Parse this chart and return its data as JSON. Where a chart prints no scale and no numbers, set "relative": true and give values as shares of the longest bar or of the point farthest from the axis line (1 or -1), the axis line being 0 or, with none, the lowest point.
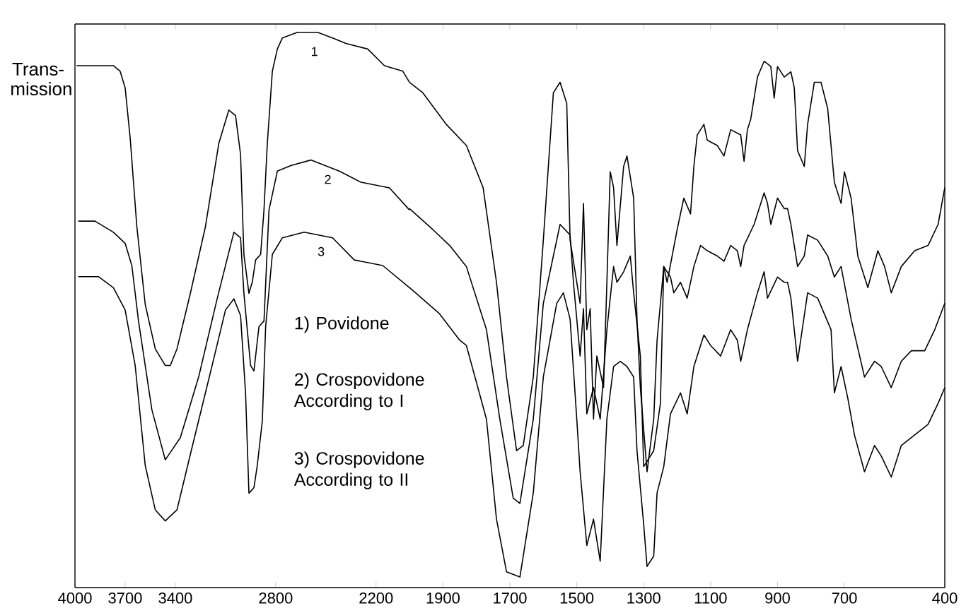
{
  "chart_data": [
    {
      "type": "line",
      "relative": true,
      "ylabel": "Trans- mission",
      "xlim": [
        4000,
        2000
      ],
      "xticks": [
        4000,
        3700,
        3400,
        2800,
        2200
      ],
      "annotations": [
        "1) Povidone",
        "2) Crospovidone According to I",
        "3) Crospovidone According to II"
      ],
      "series": [
        {
          "name": "1",
          "color": "#000000",
          "x": [
            3990,
            3940,
            3860,
            3770,
            3730,
            3700,
            3670,
            3630,
            3580,
            3520,
            3460,
            3430,
            3390,
            3310,
            3220,
            3140,
            3080,
            3040,
            3010,
            2990,
            2960,
            2940,
            2920,
            2890,
            2870,
            2850,
            2820,
            2790,
            2760,
            2670,
            2550,
            2460,
            2380,
            2250,
            2150,
            2040,
            2000
          ],
          "values": [
            0.94,
            0.94,
            0.94,
            0.94,
            0.93,
            0.9,
            0.81,
            0.65,
            0.51,
            0.43,
            0.4,
            0.4,
            0.43,
            0.53,
            0.65,
            0.8,
            0.86,
            0.85,
            0.78,
            0.6,
            0.53,
            0.55,
            0.59,
            0.6,
            0.68,
            0.8,
            0.93,
            0.97,
            0.99,
            1.0,
            1.0,
            0.99,
            0.98,
            0.97,
            0.94,
            0.93,
            0.91
          ]
        },
        {
          "name": "2",
          "color": "#000000",
          "x": [
            3980,
            3880,
            3770,
            3700,
            3660,
            3620,
            3540,
            3460,
            3370,
            3260,
            3150,
            3050,
            3010,
            2990,
            2950,
            2930,
            2900,
            2870,
            2840,
            2790,
            2710,
            2590,
            2420,
            2290,
            2120,
            2000
          ],
          "values": [
            0.66,
            0.66,
            0.64,
            0.62,
            0.58,
            0.48,
            0.32,
            0.23,
            0.27,
            0.38,
            0.52,
            0.64,
            0.63,
            0.53,
            0.4,
            0.39,
            0.47,
            0.48,
            0.68,
            0.75,
            0.76,
            0.77,
            0.75,
            0.73,
            0.72,
            0.68
          ]
        },
        {
          "name": "3",
          "color": "#000000",
          "x": [
            3980,
            3860,
            3770,
            3700,
            3640,
            3580,
            3520,
            3460,
            3390,
            3310,
            3180,
            3100,
            3050,
            3010,
            2980,
            2960,
            2930,
            2910,
            2880,
            2860,
            2820,
            2760,
            2630,
            2460,
            2330,
            2160,
            2000
          ],
          "values": [
            0.56,
            0.56,
            0.54,
            0.5,
            0.4,
            0.22,
            0.14,
            0.12,
            0.14,
            0.24,
            0.4,
            0.5,
            0.52,
            0.49,
            0.35,
            0.17,
            0.18,
            0.22,
            0.3,
            0.47,
            0.6,
            0.63,
            0.64,
            0.63,
            0.59,
            0.58,
            0.54
          ]
        }
      ]
    },
    {
      "type": "line",
      "relative": true,
      "xlim": [
        2000,
        400
      ],
      "xticks": [
        1900,
        1700,
        1500,
        1300,
        1100,
        900,
        700,
        400
      ],
      "series": [
        {
          "color": "#000000",
          "x": [
            2000,
            1960,
            1890,
            1830,
            1780,
            1740,
            1710,
            1680,
            1660,
            1630,
            1600,
            1570,
            1550,
            1530,
            1520,
            1490,
            1480,
            1470,
            1460,
            1450,
            1440,
            1420,
            1410,
            1400,
            1390,
            1380,
            1360,
            1350,
            1330,
            1320,
            1310,
            1290,
            1270,
            1260,
            1240,
            1230,
            1200,
            1180,
            1160,
            1150,
            1140,
            1120,
            1110,
            1080,
            1060,
            1040,
            1010,
            1000,
            990,
            980,
            960,
            940,
            920,
            910,
            900,
            880,
            860,
            850,
            840,
            820,
            810,
            790,
            770,
            750,
            730,
            710,
            700,
            680,
            660,
            630,
            600,
            580,
            560,
            530,
            490,
            450,
            420,
            400
          ],
          "values": [
            0.96,
            0.94,
            0.88,
            0.84,
            0.76,
            0.58,
            0.4,
            0.26,
            0.27,
            0.4,
            0.66,
            0.94,
            0.96,
            0.92,
            0.66,
            0.54,
            0.73,
            0.49,
            0.53,
            0.32,
            0.44,
            0.38,
            0.58,
            0.79,
            0.76,
            0.65,
            0.8,
            0.82,
            0.74,
            0.51,
            0.38,
            0.22,
            0.32,
            0.47,
            0.61,
            0.58,
            0.68,
            0.74,
            0.71,
            0.8,
            0.86,
            0.88,
            0.85,
            0.84,
            0.82,
            0.87,
            0.86,
            0.81,
            0.87,
            0.89,
            0.97,
            1.0,
            0.99,
            0.93,
            0.99,
            0.97,
            0.98,
            0.95,
            0.83,
            0.8,
            0.88,
            0.96,
            0.96,
            0.91,
            0.77,
            0.73,
            0.79,
            0.74,
            0.63,
            0.57,
            0.64,
            0.61,
            0.56,
            0.61,
            0.64,
            0.65,
            0.69,
            0.76
          ]
        },
        {
          "color": "#000000",
          "x": [
            2000,
            1930,
            1880,
            1830,
            1770,
            1730,
            1690,
            1670,
            1630,
            1600,
            1550,
            1520,
            1510,
            1490,
            1480,
            1470,
            1450,
            1430,
            1410,
            1390,
            1380,
            1360,
            1340,
            1330,
            1310,
            1300,
            1270,
            1250,
            1240,
            1220,
            1210,
            1190,
            1170,
            1150,
            1130,
            1110,
            1080,
            1060,
            1040,
            1020,
            1010,
            1000,
            970,
            940,
            930,
            920,
            900,
            880,
            870,
            860,
            840,
            820,
            810,
            780,
            750,
            730,
            710,
            680,
            640,
            610,
            590,
            560,
            530,
            500,
            460,
            430,
            400
          ],
          "values": [
            0.72,
            0.68,
            0.65,
            0.61,
            0.49,
            0.32,
            0.17,
            0.16,
            0.32,
            0.54,
            0.69,
            0.67,
            0.58,
            0.44,
            0.53,
            0.33,
            0.38,
            0.32,
            0.49,
            0.61,
            0.58,
            0.6,
            0.63,
            0.56,
            0.44,
            0.23,
            0.26,
            0.35,
            0.61,
            0.59,
            0.56,
            0.58,
            0.55,
            0.61,
            0.65,
            0.64,
            0.63,
            0.62,
            0.65,
            0.64,
            0.61,
            0.65,
            0.69,
            0.75,
            0.73,
            0.69,
            0.74,
            0.72,
            0.72,
            0.69,
            0.61,
            0.63,
            0.67,
            0.66,
            0.63,
            0.59,
            0.61,
            0.51,
            0.4,
            0.43,
            0.42,
            0.38,
            0.43,
            0.45,
            0.45,
            0.49,
            0.54
          ]
        },
        {
          "color": "#000000",
          "x": [
            2000,
            1910,
            1850,
            1830,
            1770,
            1740,
            1710,
            1670,
            1630,
            1600,
            1560,
            1540,
            1520,
            1500,
            1490,
            1480,
            1470,
            1450,
            1430,
            1410,
            1390,
            1370,
            1350,
            1330,
            1320,
            1300,
            1290,
            1270,
            1260,
            1240,
            1220,
            1190,
            1170,
            1150,
            1120,
            1100,
            1070,
            1040,
            1020,
            1010,
            990,
            960,
            940,
            930,
            900,
            880,
            870,
            860,
            840,
            810,
            780,
            740,
            730,
            710,
            690,
            670,
            640,
            610,
            590,
            560,
            530,
            490,
            450,
            420,
            400
          ],
          "values": [
            0.57,
            0.52,
            0.47,
            0.46,
            0.32,
            0.13,
            0.03,
            0.02,
            0.18,
            0.4,
            0.54,
            0.56,
            0.51,
            0.32,
            0.22,
            0.15,
            0.08,
            0.13,
            0.05,
            0.32,
            0.42,
            0.43,
            0.42,
            0.4,
            0.26,
            0.12,
            0.04,
            0.06,
            0.18,
            0.23,
            0.33,
            0.37,
            0.33,
            0.42,
            0.48,
            0.46,
            0.44,
            0.49,
            0.47,
            0.43,
            0.49,
            0.56,
            0.6,
            0.55,
            0.59,
            0.58,
            0.58,
            0.55,
            0.43,
            0.56,
            0.55,
            0.49,
            0.37,
            0.42,
            0.36,
            0.29,
            0.22,
            0.27,
            0.25,
            0.21,
            0.27,
            0.29,
            0.31,
            0.35,
            0.38
          ]
        }
      ]
    }
  ]
}
